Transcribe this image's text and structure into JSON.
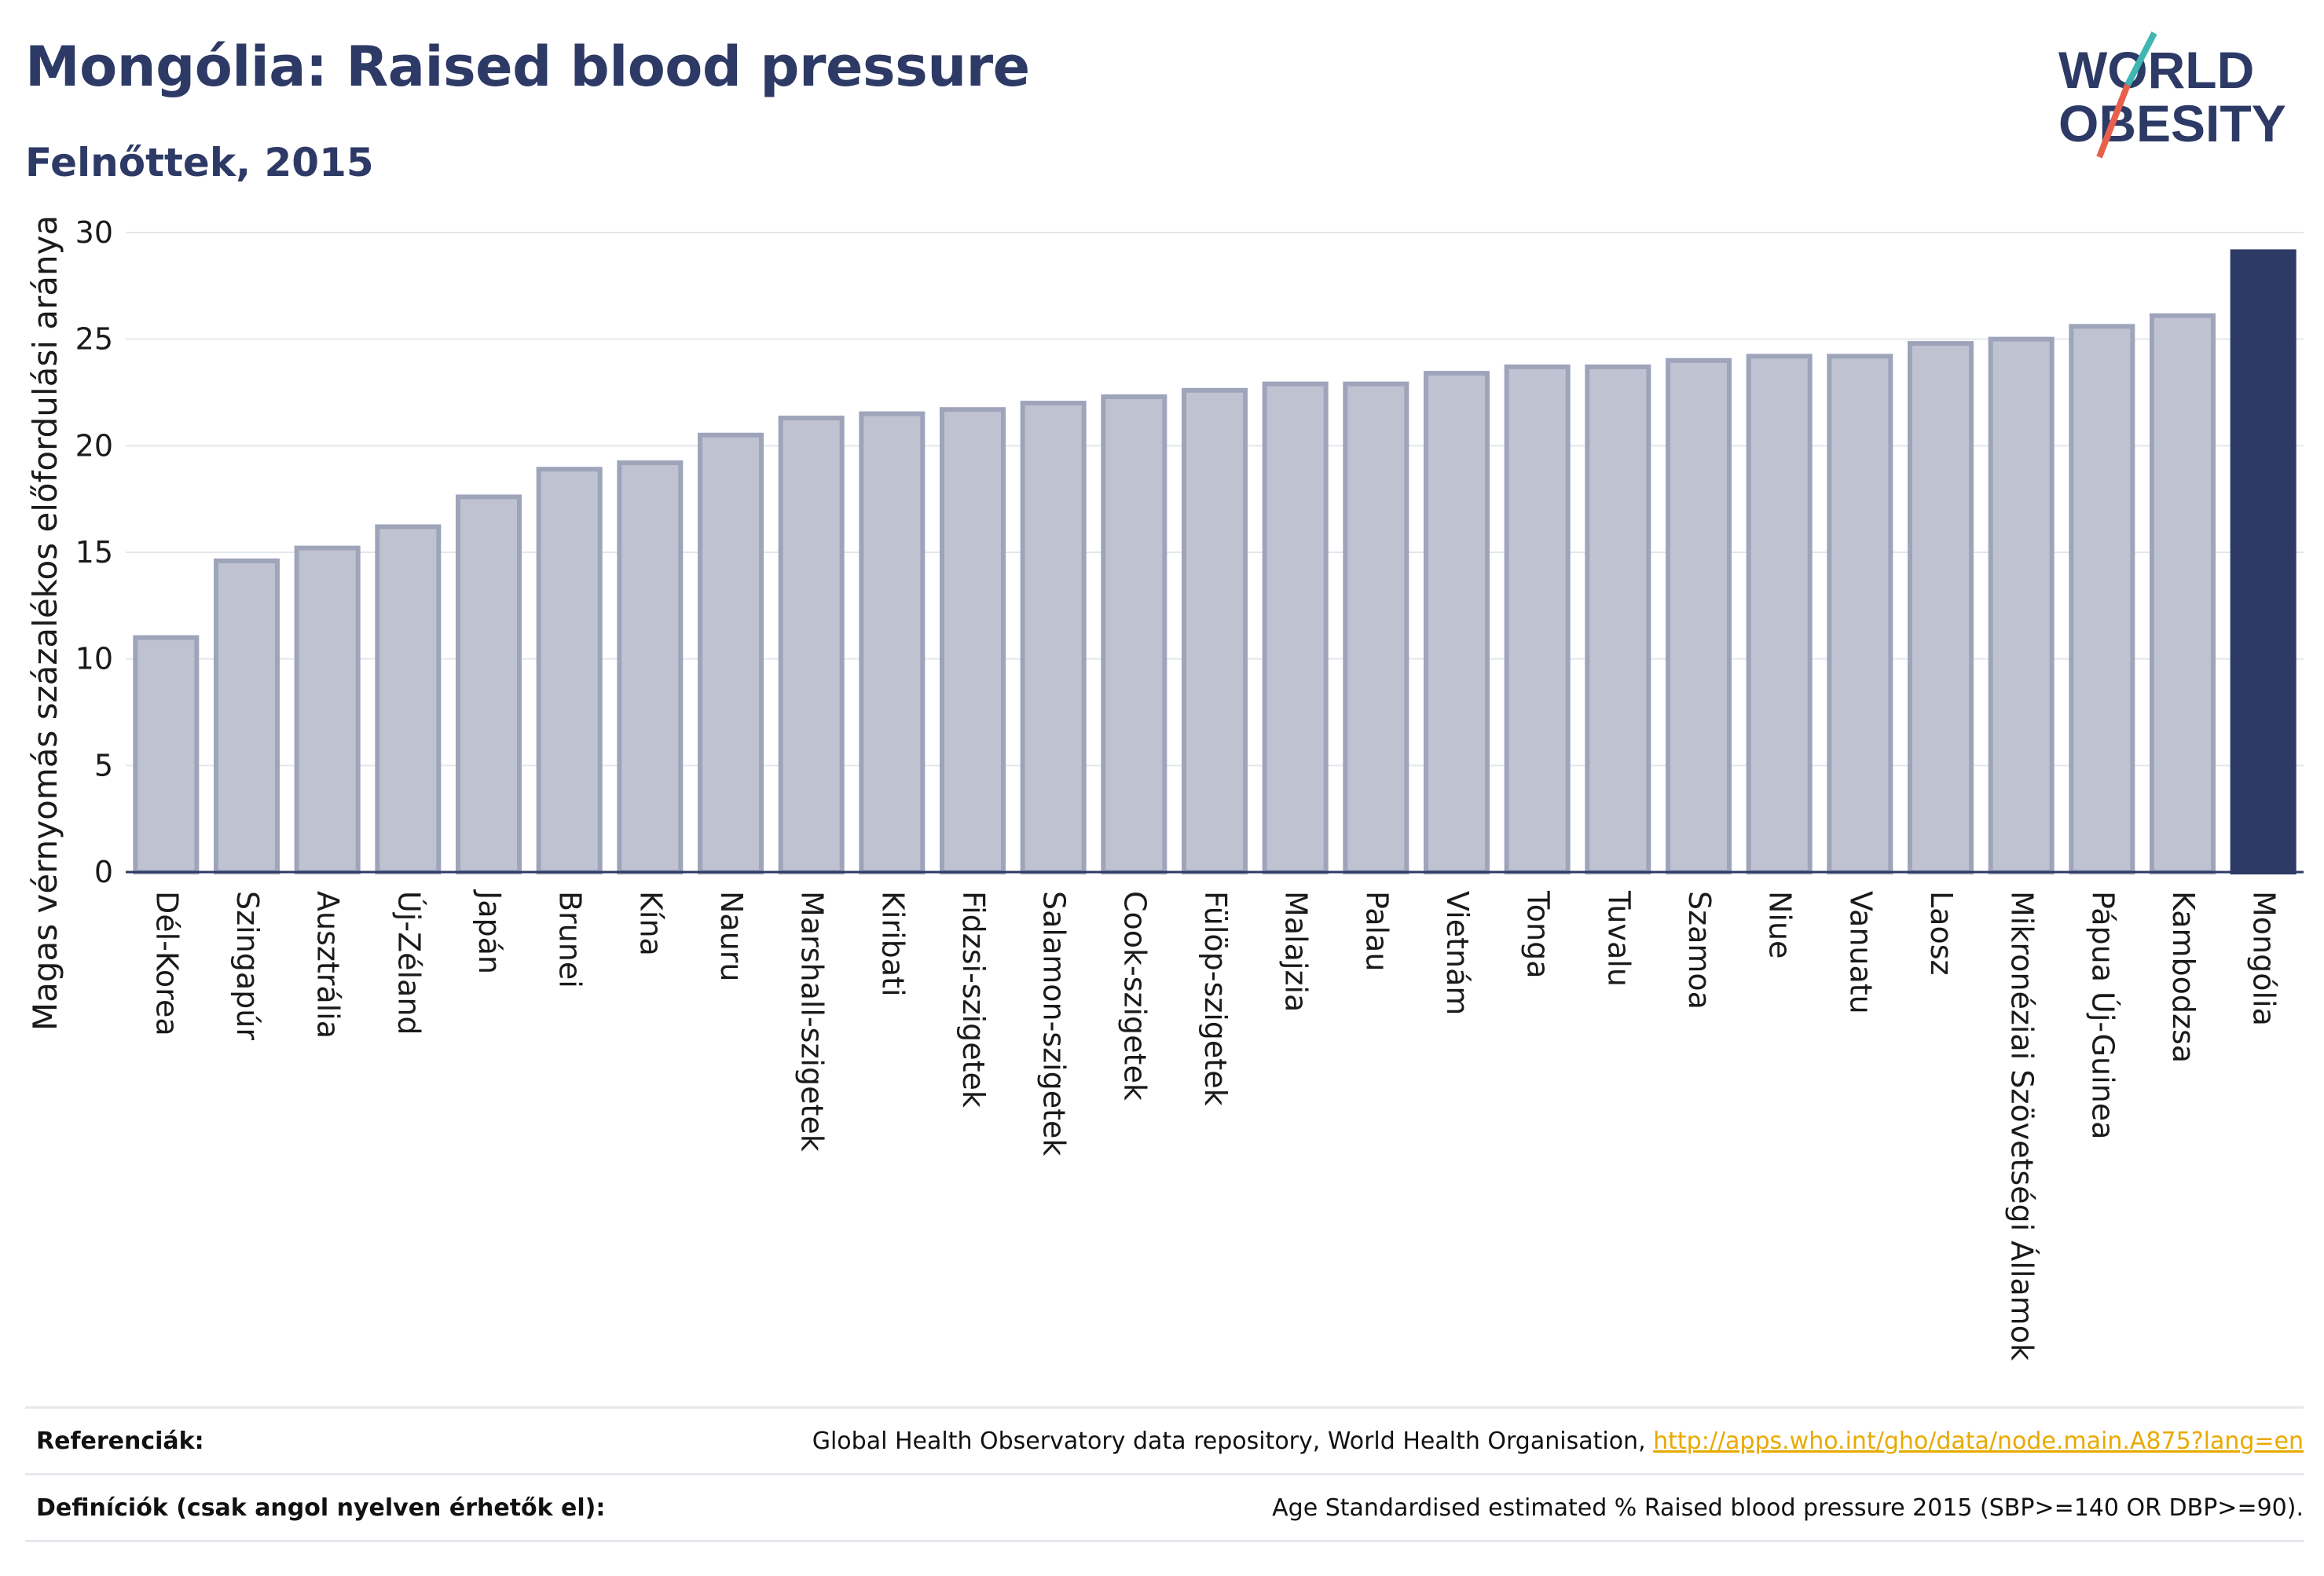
{
  "header": {
    "title": "Mongólia: Raised blood pressure",
    "subtitle": "Felnőttek, 2015"
  },
  "logo": {
    "line1": "WORLD",
    "line2": "OBESITY",
    "colors": {
      "text": "#2d3a66",
      "slash_teal": "#3fb6b2",
      "slash_red": "#e8604c"
    }
  },
  "chart_data": {
    "type": "bar",
    "ylabel": "Magas vérnyomás százalékos előfordulási aránya",
    "xlabel": "",
    "ylim": [
      0,
      30
    ],
    "yticks": [
      0,
      5,
      10,
      15,
      20,
      25,
      30
    ],
    "grid": true,
    "highlight_category": "Mongólia",
    "colors": {
      "bar": "#bfc3d1",
      "bar_edge": "#9ea4ba",
      "highlight": "#2d3a66"
    },
    "categories": [
      "Dél-Korea",
      "Szingapúr",
      "Ausztrália",
      "Új-Zéland",
      "Japán",
      "Brunei",
      "Kína",
      "Nauru",
      "Marshall-szigetek",
      "Kiribati",
      "Fidzsi-szigetek",
      "Salamon-szigetek",
      "Cook-szigetek",
      "Fülöp-szigetek",
      "Malajzia",
      "Palau",
      "Vietnám",
      "Tonga",
      "Tuvalu",
      "Szamoa",
      "Niue",
      "Vanuatu",
      "Laosz",
      "Mikronéziai Szövetségi Államok",
      "Pápua Új-Guinea",
      "Kambodzsa",
      "Mongólia"
    ],
    "values": [
      11.0,
      14.6,
      15.2,
      16.2,
      17.6,
      18.9,
      19.2,
      20.5,
      21.3,
      21.5,
      21.7,
      22.0,
      22.3,
      22.6,
      22.9,
      22.9,
      23.4,
      23.7,
      23.7,
      24.0,
      24.2,
      24.2,
      24.8,
      25.0,
      25.6,
      26.1,
      29.1
    ]
  },
  "footer": {
    "references_label": "Referenciák:",
    "references_text": "Global Health Observatory data repository, World Health Organisation, ",
    "references_link": "http://apps.who.int/gho/data/node.main.A875?lang=en",
    "definitions_label": "Definíciók (csak angol nyelven érhetők el):",
    "definitions_text": "Age Standardised estimated % Raised blood pressure 2015 (SBP>=140 OR DBP>=90)."
  }
}
